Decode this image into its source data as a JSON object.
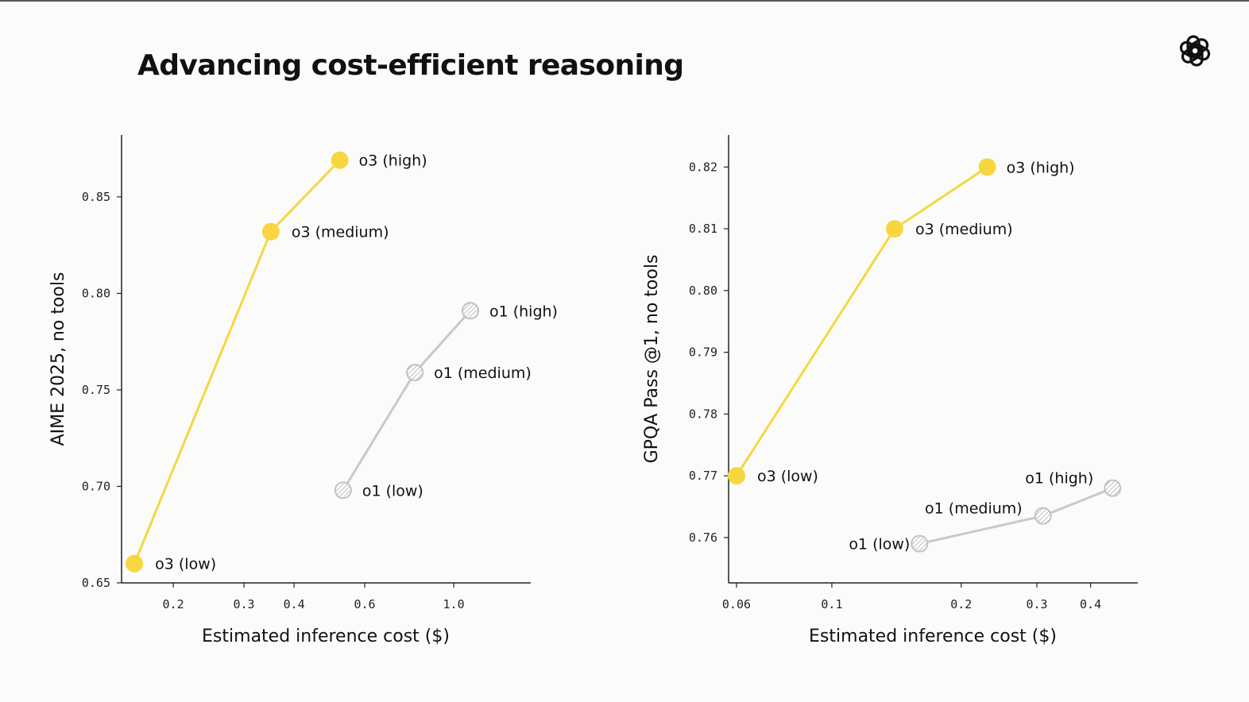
{
  "header": {
    "title": "Advancing cost-efficient reasoning",
    "logo_icon": "openai-logo-icon"
  },
  "colors": {
    "o3": "#f7d640",
    "o1": "#c9c9c9",
    "axis": "#222222",
    "background": "#fbfcfa"
  },
  "chart_data": [
    {
      "type": "line",
      "xscale": "log",
      "xlabel": "Estimated inference cost ($)",
      "ylabel": "AIME 2025, no tools",
      "xlim": [
        0.15,
        1.5
      ],
      "ylim": [
        0.65,
        0.88
      ],
      "xticks": [
        0.2,
        0.3,
        0.4,
        0.6,
        1.0
      ],
      "xticklabels": [
        "0.2",
        "0.3",
        "0.4",
        "0.6",
        "1.0"
      ],
      "yticks": [
        0.65,
        0.7,
        0.75,
        0.8,
        0.85
      ],
      "yticklabels": [
        "0.65",
        "0.70",
        "0.75",
        "0.80",
        "0.85"
      ],
      "grid": false,
      "series": [
        {
          "name": "o3",
          "style": "solid",
          "points": [
            {
              "label": "o3 (low)",
              "x": 0.16,
              "y": 0.66
            },
            {
              "label": "o3 (medium)",
              "x": 0.35,
              "y": 0.832
            },
            {
              "label": "o3 (high)",
              "x": 0.52,
              "y": 0.869
            }
          ]
        },
        {
          "name": "o1",
          "style": "hatched",
          "points": [
            {
              "label": "o1 (low)",
              "x": 0.53,
              "y": 0.698
            },
            {
              "label": "o1 (medium)",
              "x": 0.8,
              "y": 0.759
            },
            {
              "label": "o1 (high)",
              "x": 1.1,
              "y": 0.791
            }
          ]
        }
      ]
    },
    {
      "type": "line",
      "xscale": "log",
      "xlabel": "Estimated inference cost ($)",
      "ylabel": "GPQA Pass @1, no tools",
      "xlim": [
        0.058,
        0.5
      ],
      "ylim": [
        0.756,
        0.823
      ],
      "xticks": [
        0.06,
        0.1,
        0.2,
        0.3,
        0.4
      ],
      "xticklabels": [
        "0.06",
        "0.1",
        "0.2",
        "0.3",
        "0.4"
      ],
      "yticks": [
        0.76,
        0.77,
        0.78,
        0.79,
        0.8,
        0.81,
        0.82
      ],
      "yticklabels": [
        "0.76",
        "0.77",
        "0.78",
        "0.79",
        "0.80",
        "0.81",
        "0.82"
      ],
      "grid": false,
      "series": [
        {
          "name": "o3",
          "style": "solid",
          "points": [
            {
              "label": "o3 (low)",
              "x": 0.06,
              "y": 0.77
            },
            {
              "label": "o3 (medium)",
              "x": 0.14,
              "y": 0.81
            },
            {
              "label": "o3 (high)",
              "x": 0.23,
              "y": 0.82
            }
          ]
        },
        {
          "name": "o1",
          "style": "hatched",
          "points": [
            {
              "label": "o1 (low)",
              "x": 0.16,
              "y": 0.759
            },
            {
              "label": "o1 (medium)",
              "x": 0.31,
              "y": 0.7635
            },
            {
              "label": "o1 (high)",
              "x": 0.45,
              "y": 0.768
            }
          ]
        }
      ]
    }
  ]
}
